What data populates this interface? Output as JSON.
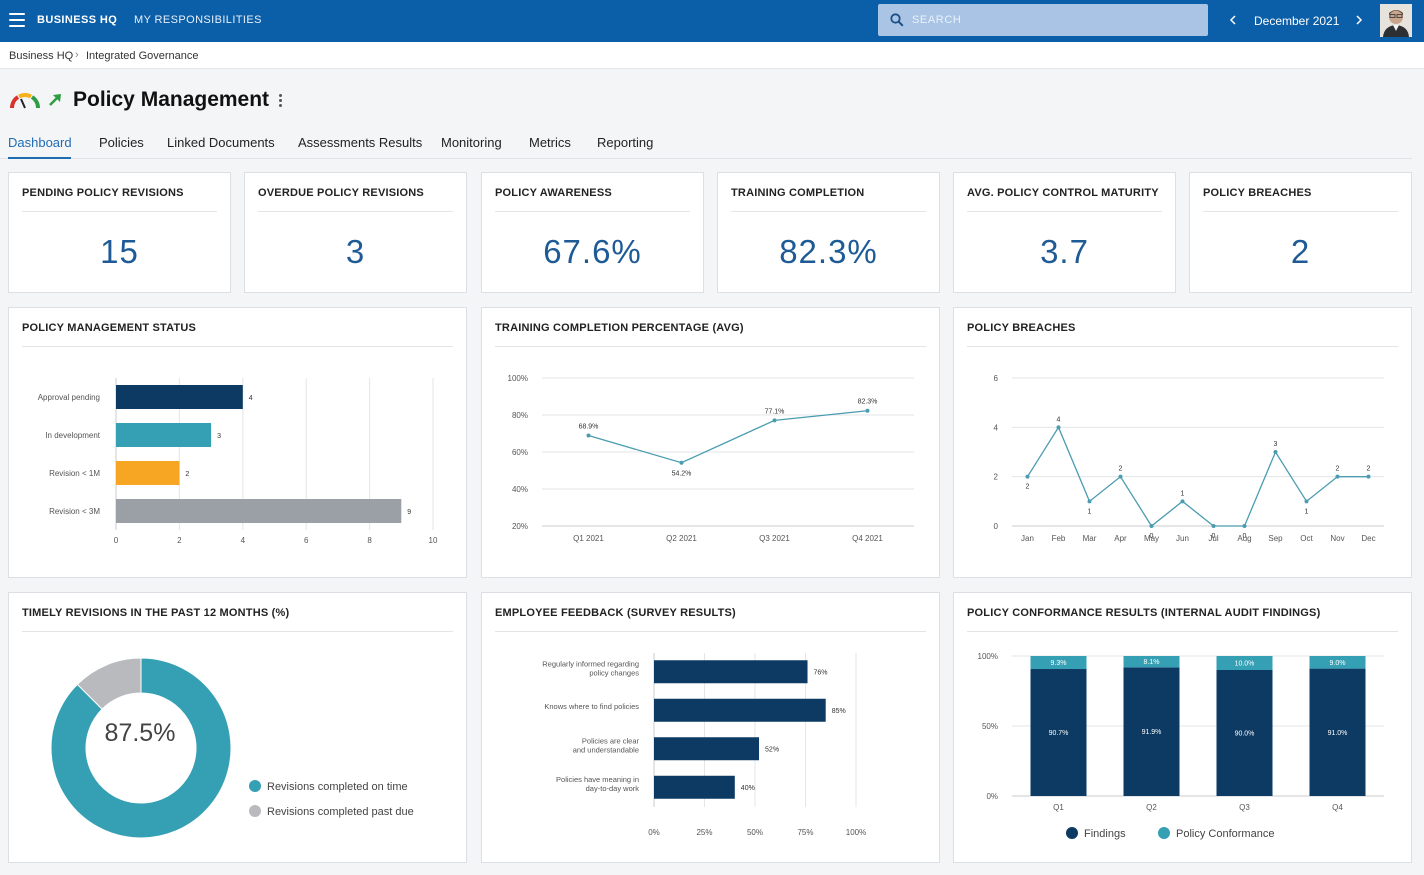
{
  "topbar": {
    "brand": "BUSINESS HQ",
    "my_responsibilities": "MY RESPONSIBILITIES",
    "search_placeholder": "SEARCH",
    "period": "December 2021"
  },
  "breadcrumb": [
    "Business HQ",
    "Integrated Governance"
  ],
  "page": {
    "title": "Policy Management"
  },
  "tabs": [
    "Dashboard",
    "Policies",
    "Linked Documents",
    "Assessments Results",
    "Monitoring",
    "Metrics",
    "Reporting"
  ],
  "active_tab": "Dashboard",
  "colors": {
    "accent": "#0b5ea8",
    "navy": "#0d3a63",
    "teal": "#35a0b4",
    "orange": "#f6a623",
    "gray": "#9aa0a6",
    "kpi": "#1e5a95"
  },
  "kpis": [
    {
      "label": "PENDING POLICY REVISIONS",
      "value": "15"
    },
    {
      "label": "OVERDUE POLICY REVISIONS",
      "value": "3"
    },
    {
      "label": "POLICY AWARENESS",
      "value": "67.6%"
    },
    {
      "label": "TRAINING COMPLETION",
      "value": "82.3%"
    },
    {
      "label": "AVG. POLICY CONTROL MATURITY",
      "value": "3.7"
    },
    {
      "label": "POLICY BREACHES",
      "value": "2"
    }
  ],
  "panels": {
    "status_title": "POLICY MANAGEMENT STATUS",
    "training_title": "TRAINING COMPLETION PERCENTAGE (AVG)",
    "breaches_title": "POLICY BREACHES",
    "timely_title": "TIMELY REVISIONS IN THE PAST 12 MONTHS (%)",
    "feedback_title": "EMPLOYEE FEEDBACK (SURVEY RESULTS)",
    "conformance_title": "POLICY CONFORMANCE RESULTS (INTERNAL AUDIT FINDINGS)"
  },
  "chart_data": [
    {
      "id": "status",
      "type": "bar",
      "orientation": "horizontal",
      "categories": [
        "Approval pending",
        "In development",
        "Revision < 1M",
        "Revision < 3M"
      ],
      "values": [
        4,
        3,
        2,
        9
      ],
      "value_labels": [
        "4",
        "3",
        "2",
        "9"
      ],
      "colors": [
        "#0d3a63",
        "#35a0b4",
        "#f6a623",
        "#9aa0a6"
      ],
      "xlim": [
        0,
        10
      ],
      "xticks": [
        "0",
        "2",
        "4",
        "6",
        "8",
        "10"
      ],
      "grid": true
    },
    {
      "id": "training",
      "type": "line",
      "categories": [
        "Q1 2021",
        "Q2 2021",
        "Q3 2021",
        "Q4 2021"
      ],
      "values": [
        68.9,
        54.2,
        77.1,
        82.3
      ],
      "value_labels": [
        "68.9%",
        "54.2%",
        "77.1%",
        "82.3%"
      ],
      "ylim": [
        20,
        100
      ],
      "yticks": [
        "20%",
        "40%",
        "60%",
        "80%",
        "100%"
      ],
      "grid": true
    },
    {
      "id": "breaches",
      "type": "line",
      "categories": [
        "Jan",
        "Feb",
        "Mar",
        "Apr",
        "May",
        "Jun",
        "Jul",
        "Aug",
        "Sep",
        "Oct",
        "Nov",
        "Dec"
      ],
      "values": [
        2,
        4,
        1,
        2,
        0,
        1,
        0,
        0,
        3,
        1,
        2,
        2
      ],
      "value_labels": [
        "2",
        "4",
        "1",
        "2",
        "0",
        "1",
        "0",
        "0",
        "3",
        "1",
        "2",
        "2"
      ],
      "ylim": [
        0,
        6
      ],
      "yticks": [
        "0",
        "2",
        "4",
        "6"
      ],
      "grid": true
    },
    {
      "id": "timely",
      "type": "pie",
      "center_label": "87.5%",
      "slices": [
        {
          "name": "Revisions completed on time",
          "value": 87.5,
          "color": "#35a0b4"
        },
        {
          "name": "Revisions completed past due",
          "value": 12.5,
          "color": "#b8babd"
        }
      ]
    },
    {
      "id": "feedback",
      "type": "bar",
      "orientation": "horizontal",
      "categories": [
        [
          "Regularly informed regarding",
          "policy changes"
        ],
        [
          "Knows where to find policies"
        ],
        [
          "Policies are clear",
          "and understandable"
        ],
        [
          "Policies have meaning in",
          "day-to-day work"
        ]
      ],
      "values": [
        76,
        85,
        52,
        40
      ],
      "value_labels": [
        "76%",
        "85%",
        "52%",
        "40%"
      ],
      "xlim": [
        0,
        100
      ],
      "xticks": [
        "0%",
        "25%",
        "50%",
        "75%",
        "100%"
      ],
      "grid": true
    },
    {
      "id": "conformance",
      "type": "bar",
      "stacked": true,
      "categories": [
        "Q1",
        "Q2",
        "Q3",
        "Q4"
      ],
      "series": [
        {
          "name": "Findings",
          "values": [
            90.7,
            91.9,
            90.0,
            91.0
          ],
          "labels": [
            "90.7%",
            "91.9%",
            "90.0%",
            "91.0%"
          ],
          "color": "#0d3a63"
        },
        {
          "name": "Policy Conformance",
          "values": [
            9.3,
            8.1,
            10.0,
            9.0
          ],
          "labels": [
            "9.3%",
            "8.1%",
            "10.0%",
            "9.0%"
          ],
          "color": "#35a0b4"
        }
      ],
      "ylim": [
        0,
        100
      ],
      "yticks": [
        "0%",
        "50%",
        "100%"
      ]
    }
  ]
}
